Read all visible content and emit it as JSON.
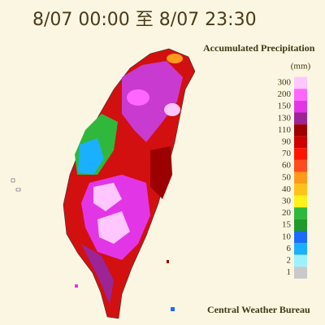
{
  "header": {
    "title": "8/07 00:00 至 8/07 23:30",
    "subtitle": "Accumulated Precipitation",
    "unit": "(mm)"
  },
  "legend": [
    {
      "label": "300",
      "color": "#ffc6ff"
    },
    {
      "label": "200",
      "color": "#ff66ff"
    },
    {
      "label": "150",
      "color": "#e236e6"
    },
    {
      "label": "130",
      "color": "#9c2496"
    },
    {
      "label": "110",
      "color": "#9c0000"
    },
    {
      "label": "90",
      "color": "#cf0000"
    },
    {
      "label": "70",
      "color": "#ff1400"
    },
    {
      "label": "60",
      "color": "#ff4b1e"
    },
    {
      "label": "50",
      "color": "#ff9a1a"
    },
    {
      "label": "40",
      "color": "#ffc21a"
    },
    {
      "label": "30",
      "color": "#fff21a"
    },
    {
      "label": "20",
      "color": "#2fb83c"
    },
    {
      "label": "15",
      "color": "#1f9a2c"
    },
    {
      "label": "10",
      "color": "#1a6cff"
    },
    {
      "label": "6",
      "color": "#1ab0ff"
    },
    {
      "label": "2",
      "color": "#9ef2ff"
    },
    {
      "label": "1",
      "color": "#c9c9c9"
    }
  ],
  "footer": {
    "credit": "Central Weather Bureau"
  }
}
